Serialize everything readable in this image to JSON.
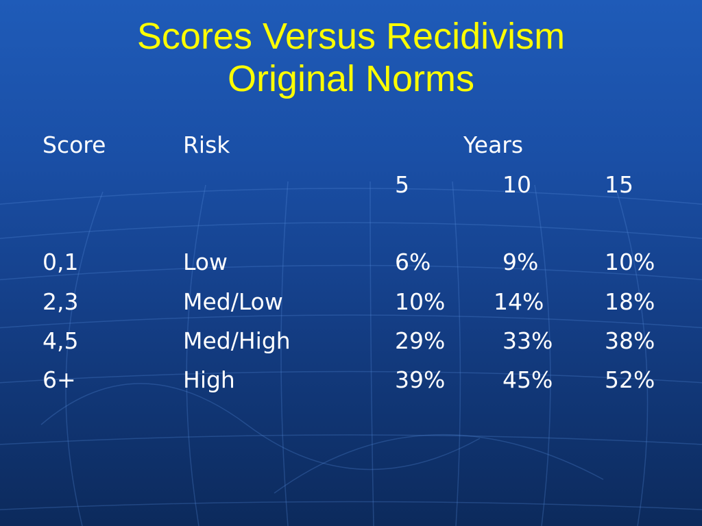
{
  "slide": {
    "title_line1": "Scores Versus Recidivism",
    "title_line2": "Original Norms"
  },
  "table": {
    "headers": {
      "score": "Score",
      "risk": "Risk",
      "years": "Years",
      "year_5": "5",
      "year_10": "10",
      "year_15": "15"
    },
    "rows": [
      {
        "score": "0,1",
        "risk": "Low",
        "y5": "6%",
        "y10": "9%",
        "y15": "10%"
      },
      {
        "score": "2,3",
        "risk": "Med/Low",
        "y5": "10%",
        "y10": "14%",
        "y15": "18%"
      },
      {
        "score": "4,5",
        "risk": "Med/High",
        "y5": "29%",
        "y10": "33%",
        "y15": "38%"
      },
      {
        "score": "6+",
        "risk": "High",
        "y5": "39%",
        "y10": "45%",
        "y15": "52%"
      }
    ]
  },
  "colors": {
    "title": "#ffff00",
    "text": "#ffffff",
    "background_top": "#1f5bb8",
    "background_bottom": "#0c2a5c"
  }
}
